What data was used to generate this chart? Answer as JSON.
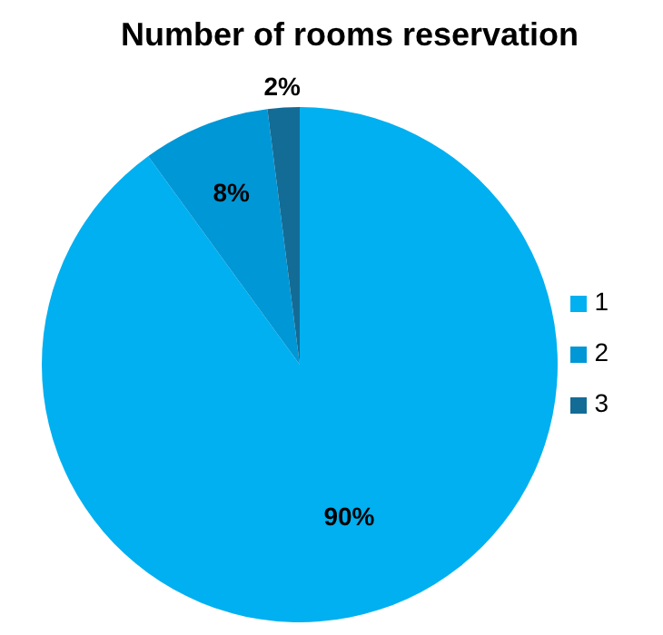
{
  "chart_data": {
    "type": "pie",
    "title": "Number of rooms reservation",
    "categories": [
      "1",
      "2",
      "3"
    ],
    "values": [
      90,
      8,
      2
    ],
    "value_labels": [
      "90%",
      "8%",
      "2%"
    ],
    "colors": [
      "#00b0f0",
      "#0097d6",
      "#136c96"
    ],
    "legend": "right"
  }
}
